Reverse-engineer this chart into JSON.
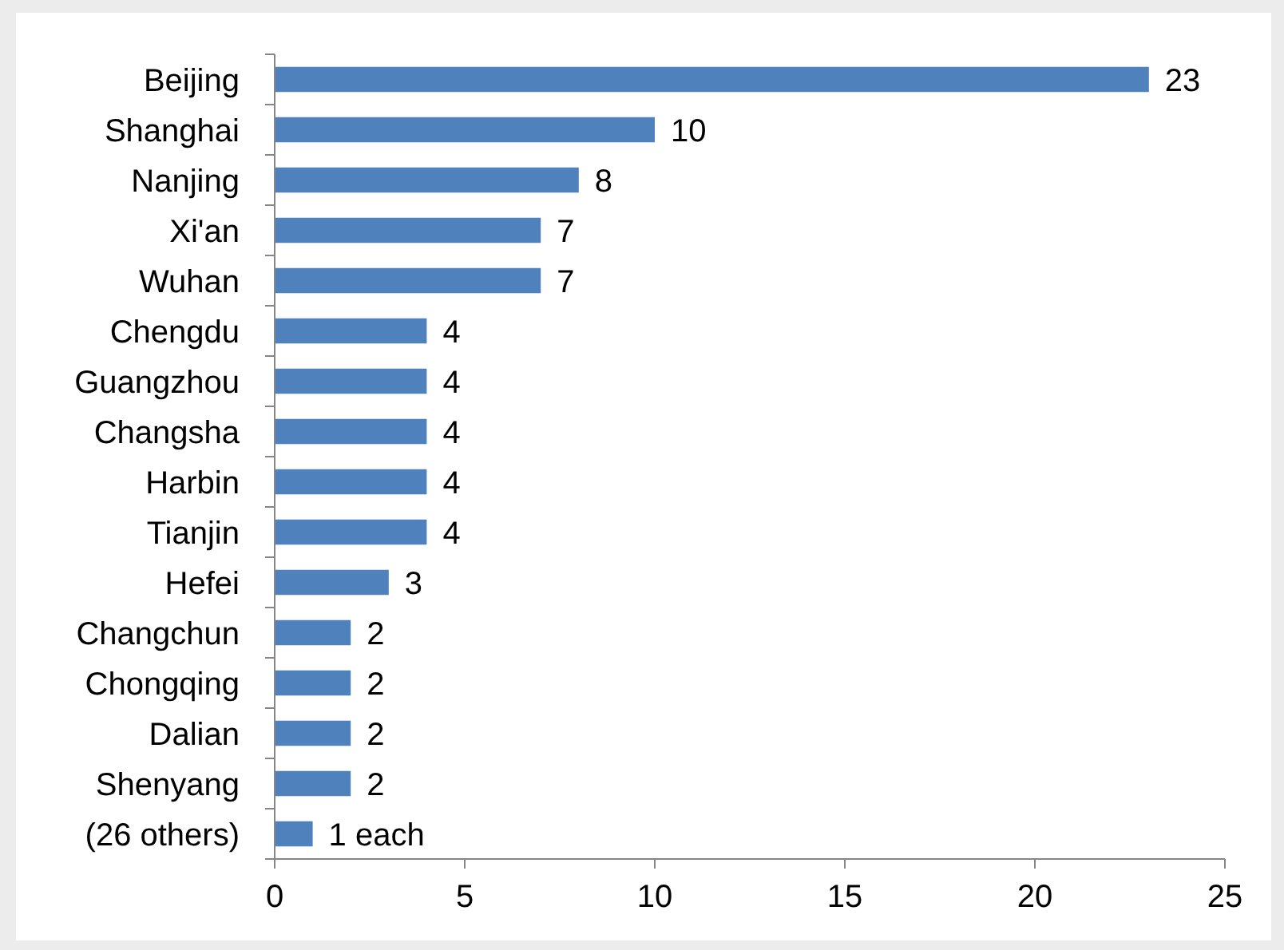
{
  "chart_data": {
    "type": "bar",
    "orientation": "horizontal",
    "categories": [
      "Beijing",
      "Shanghai",
      "Nanjing",
      "Xi'an",
      "Wuhan",
      "Chengdu",
      "Guangzhou",
      "Changsha",
      "Harbin",
      "Tianjin",
      "Hefei",
      "Changchun",
      "Chongqing",
      "Dalian",
      "Shenyang",
      "(26 others)"
    ],
    "values": [
      23,
      10,
      8,
      7,
      7,
      4,
      4,
      4,
      4,
      4,
      3,
      2,
      2,
      2,
      2,
      1
    ],
    "value_labels": [
      "23",
      "10",
      "8",
      "7",
      "7",
      "4",
      "4",
      "4",
      "4",
      "4",
      "3",
      "2",
      "2",
      "2",
      "2",
      "1 each"
    ],
    "color": "#4f81bd",
    "xlim": [
      0,
      25
    ],
    "xticks": [
      0,
      5,
      10,
      15,
      20,
      25
    ]
  }
}
